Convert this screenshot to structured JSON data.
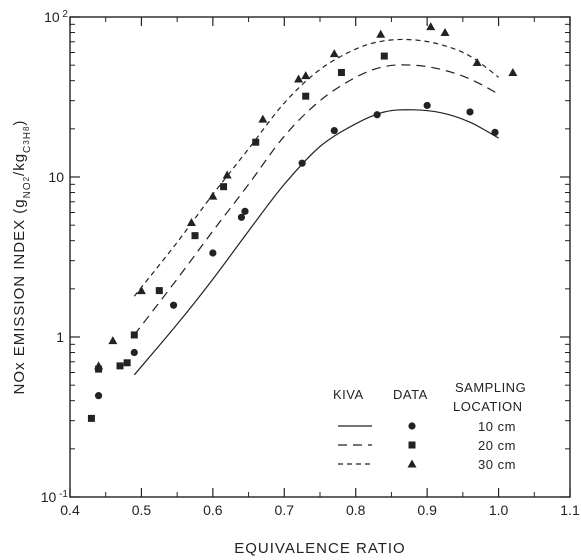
{
  "chart_data": {
    "type": "scatter",
    "title": "",
    "xlabel": "EQUIVALENCE RATIO",
    "ylabel_parts": {
      "main": "NOx EMISSION INDEX (g",
      "sub1": "NO",
      "sub1b": "2",
      "slash": "/kg",
      "sub2": "C",
      "sub2b": "3",
      "sub2c": "H",
      "sub2d": "8",
      "close": ")"
    },
    "x_ticks": [
      "0.4",
      "0.5",
      "0.6",
      "0.7",
      "0.8",
      "0.9",
      "1.0",
      "1.1"
    ],
    "y_ticks": [
      {
        "value": 0.1,
        "base": "10",
        "exp": "-1"
      },
      {
        "value": 1,
        "base": "1",
        "exp": ""
      },
      {
        "value": 10,
        "base": "10",
        "exp": ""
      },
      {
        "value": 100,
        "base": "10",
        "exp": "2"
      }
    ],
    "xlim": [
      0.4,
      1.1
    ],
    "ylim": [
      0.1,
      100
    ],
    "y_scale": "log",
    "grid": false,
    "legend": {
      "placement": "bottom-right",
      "header_kiva": "KIVA",
      "header_data": "DATA",
      "header_sampling": "SAMPLING",
      "header_location": "LOCATION",
      "entries": [
        "10  cm",
        "20  cm",
        "30  cm"
      ]
    },
    "series": [
      {
        "location": "10 cm",
        "marker": "circle",
        "line_style": "solid",
        "kiva_curve": [
          [
            0.49,
            0.58
          ],
          [
            0.55,
            1.2
          ],
          [
            0.6,
            2.3
          ],
          [
            0.65,
            4.6
          ],
          [
            0.7,
            9.0
          ],
          [
            0.75,
            15.5
          ],
          [
            0.8,
            21.5
          ],
          [
            0.84,
            25.5
          ],
          [
            0.88,
            26.3
          ],
          [
            0.92,
            25.2
          ],
          [
            0.96,
            22.0
          ],
          [
            1.0,
            17.5
          ]
        ],
        "data": [
          [
            0.44,
            0.43
          ],
          [
            0.49,
            0.8
          ],
          [
            0.545,
            1.58
          ],
          [
            0.6,
            3.35
          ],
          [
            0.64,
            5.6
          ],
          [
            0.645,
            6.1
          ],
          [
            0.725,
            12.2
          ],
          [
            0.77,
            19.5
          ],
          [
            0.83,
            24.5
          ],
          [
            0.9,
            28.0
          ],
          [
            0.96,
            25.5
          ],
          [
            0.995,
            19.0
          ]
        ]
      },
      {
        "location": "20 cm",
        "marker": "square",
        "line_style": "long-dash",
        "kiva_curve": [
          [
            0.49,
            1.03
          ],
          [
            0.55,
            2.3
          ],
          [
            0.6,
            4.6
          ],
          [
            0.65,
            9.0
          ],
          [
            0.7,
            18.0
          ],
          [
            0.75,
            30.0
          ],
          [
            0.8,
            42.0
          ],
          [
            0.84,
            49.0
          ],
          [
            0.88,
            50.0
          ],
          [
            0.92,
            47.0
          ],
          [
            0.96,
            41.0
          ],
          [
            1.0,
            33.0
          ]
        ],
        "data": [
          [
            0.43,
            0.31
          ],
          [
            0.44,
            0.63
          ],
          [
            0.47,
            0.66
          ],
          [
            0.48,
            0.69
          ],
          [
            0.49,
            1.03
          ],
          [
            0.525,
            1.95
          ],
          [
            0.575,
            4.3
          ],
          [
            0.615,
            8.7
          ],
          [
            0.66,
            16.5
          ],
          [
            0.73,
            32.0
          ],
          [
            0.78,
            45.0
          ],
          [
            0.84,
            57.0
          ]
        ]
      },
      {
        "location": "30 cm",
        "marker": "triangle",
        "line_style": "short-dash",
        "kiva_curve": [
          [
            0.49,
            1.8
          ],
          [
            0.55,
            3.9
          ],
          [
            0.6,
            7.8
          ],
          [
            0.65,
            15.0
          ],
          [
            0.7,
            29.0
          ],
          [
            0.75,
            47.0
          ],
          [
            0.8,
            63.0
          ],
          [
            0.84,
            71.0
          ],
          [
            0.88,
            72.0
          ],
          [
            0.92,
            67.0
          ],
          [
            0.96,
            57.0
          ],
          [
            1.0,
            42.0
          ]
        ],
        "data": [
          [
            0.44,
            0.66
          ],
          [
            0.46,
            0.95
          ],
          [
            0.5,
            1.95
          ],
          [
            0.57,
            5.2
          ],
          [
            0.6,
            7.6
          ],
          [
            0.62,
            10.3
          ],
          [
            0.67,
            23.0
          ],
          [
            0.72,
            41.0
          ],
          [
            0.73,
            43.0
          ],
          [
            0.77,
            59.0
          ],
          [
            0.835,
            78.0
          ],
          [
            0.905,
            87.0
          ],
          [
            0.925,
            80.0
          ],
          [
            0.97,
            52.0
          ],
          [
            1.02,
            45.0
          ]
        ]
      }
    ]
  }
}
